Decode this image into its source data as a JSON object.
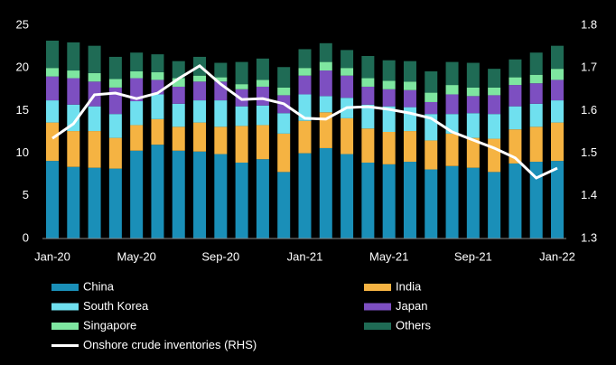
{
  "chart_data": {
    "type": "bar",
    "stacked": true,
    "legend": "bottom",
    "categories": [
      "Jan-20",
      null,
      null,
      null,
      "May-20",
      null,
      null,
      null,
      "Sep-20",
      null,
      null,
      null,
      "Jan-21",
      null,
      null,
      null,
      "May-21",
      null,
      null,
      null,
      "Sep-21",
      null,
      null,
      null,
      "Jan-22"
    ],
    "ylim": [
      0,
      25
    ],
    "yticks": [
      0,
      5,
      10,
      15,
      20,
      25
    ],
    "y2lim": [
      1.3,
      1.8
    ],
    "y2ticks": [
      1.3,
      1.4,
      1.5,
      1.6,
      1.7,
      1.8
    ],
    "series": [
      {
        "name": "China",
        "color": "#1a8fb8",
        "values": [
          9.1,
          8.4,
          8.3,
          8.2,
          10.3,
          11.0,
          10.3,
          10.2,
          9.9,
          8.9,
          9.3,
          7.8,
          10.0,
          10.6,
          9.9,
          8.9,
          8.7,
          9.0,
          8.1,
          8.5,
          8.3,
          7.8,
          8.8,
          9.0,
          9.1
        ]
      },
      {
        "name": "India",
        "color": "#f5b342",
        "values": [
          4.5,
          4.2,
          4.3,
          3.6,
          3.0,
          3.0,
          2.8,
          3.4,
          3.2,
          4.3,
          4.0,
          4.5,
          3.8,
          4.2,
          4.2,
          4.0,
          3.8,
          3.6,
          3.4,
          3.8,
          3.5,
          3.9,
          4.0,
          4.1,
          4.5
        ]
      },
      {
        "name": "South Korea",
        "color": "#6fe0ef",
        "values": [
          2.6,
          3.1,
          2.9,
          2.8,
          2.8,
          2.9,
          2.7,
          2.6,
          3.1,
          2.3,
          2.3,
          2.4,
          3.1,
          1.9,
          2.4,
          2.8,
          3.0,
          2.8,
          3.1,
          2.3,
          2.9,
          2.9,
          2.7,
          2.7,
          2.6
        ]
      },
      {
        "name": "Japan",
        "color": "#7d4fc1",
        "values": [
          2.8,
          3.1,
          2.9,
          3.1,
          2.7,
          1.7,
          2.0,
          2.2,
          2.2,
          2.0,
          2.2,
          2.1,
          2.2,
          3.0,
          2.6,
          2.1,
          2.0,
          2.0,
          1.4,
          2.3,
          2.0,
          2.2,
          2.5,
          2.4,
          2.4
        ]
      },
      {
        "name": "Singapore",
        "color": "#7ee6a0",
        "values": [
          1.0,
          0.9,
          1.0,
          1.0,
          0.8,
          0.9,
          1.0,
          0.7,
          0.5,
          0.6,
          0.8,
          0.9,
          0.9,
          1.0,
          0.9,
          1.0,
          1.0,
          1.0,
          1.1,
          1.1,
          1.0,
          0.9,
          0.9,
          1.0,
          1.3
        ]
      },
      {
        "name": "Others",
        "color": "#1f6b55",
        "values": [
          3.2,
          3.3,
          3.2,
          2.6,
          2.2,
          2.1,
          2.0,
          2.2,
          1.7,
          2.6,
          2.5,
          2.4,
          2.2,
          2.2,
          2.1,
          2.6,
          2.4,
          2.4,
          2.5,
          2.7,
          2.9,
          2.2,
          2.1,
          2.6,
          2.7
        ]
      },
      {
        "name": "Onshore crude inventories (RHS)",
        "type": "line",
        "axis": "y2",
        "color": "#ffffff",
        "values": [
          1.535,
          1.569,
          1.637,
          1.641,
          1.628,
          1.641,
          1.675,
          1.705,
          1.662,
          1.626,
          1.628,
          1.616,
          1.582,
          1.58,
          1.607,
          1.609,
          1.603,
          1.594,
          1.582,
          1.55,
          1.531,
          1.512,
          1.489,
          1.442,
          1.465
        ]
      }
    ]
  }
}
